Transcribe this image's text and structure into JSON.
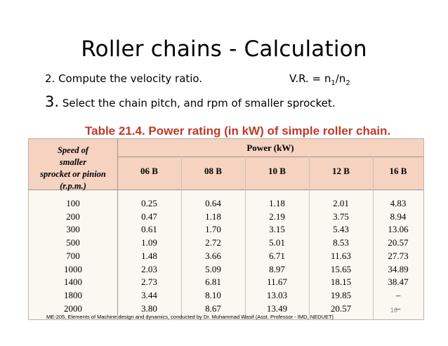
{
  "slide": {
    "title": "Roller chains - Calculation",
    "step2": "2. Compute the velocity ratio.",
    "vr_prefix": "V.R. = n",
    "vr_sub1": "1",
    "vr_mid": "/n",
    "vr_sub2": "2",
    "step3_num": "3.",
    "step3_text": "Select the chain pitch, and rpm of smaller sprocket.",
    "footer": "ME-205, Elements of Machine design and dynamics, conducted by Dr. Muhammad Wasif (Asst. Professor - IMD, NEDUET)",
    "page_number": "16"
  },
  "table": {
    "caption": "Table 21.4. Power rating (in kW) of simple roller chain.",
    "speed_header": [
      "Speed of",
      "smaller",
      "sprocket or pinion",
      "(r.p.m.)"
    ],
    "power_header": "Power (kW)",
    "columns": [
      "06 B",
      "08 B",
      "10 B",
      "12 B",
      "16 B"
    ],
    "rows": [
      [
        "100",
        "0.25",
        "0.64",
        "1.18",
        "2.01",
        "4.83"
      ],
      [
        "200",
        "0.47",
        "1.18",
        "2.19",
        "3.75",
        "8.94"
      ],
      [
        "300",
        "0.61",
        "1.70",
        "3.15",
        "5.43",
        "13.06"
      ],
      [
        "500",
        "1.09",
        "2.72",
        "5.01",
        "8.53",
        "20.57"
      ],
      [
        "700",
        "1.48",
        "3.66",
        "6.71",
        "11.63",
        "27.73"
      ],
      [
        "1000",
        "2.03",
        "5.09",
        "8.97",
        "15.65",
        "34.89"
      ],
      [
        "1400",
        "2.73",
        "6.81",
        "11.67",
        "18.15",
        "38.47"
      ],
      [
        "1800",
        "3.44",
        "8.10",
        "13.03",
        "19.85",
        "–"
      ],
      [
        "2000",
        "3.80",
        "8.67",
        "13.49",
        "20.57",
        "–"
      ]
    ]
  }
}
